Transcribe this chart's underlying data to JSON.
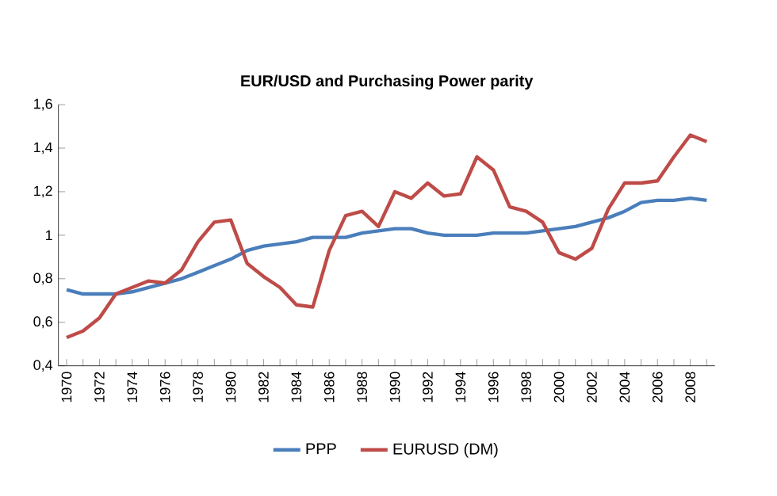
{
  "chart_data": {
    "type": "line",
    "title": "EUR/USD and Purchasing Power parity",
    "categories": [
      "1970",
      null,
      "1972",
      null,
      "1974",
      null,
      "1976",
      null,
      "1978",
      null,
      "1980",
      null,
      "1982",
      null,
      "1984",
      null,
      "1986",
      null,
      "1988",
      null,
      "1990",
      null,
      "1992",
      null,
      "1994",
      null,
      "1996",
      null,
      "1998",
      null,
      "2000",
      null,
      "2002",
      null,
      "2004",
      null,
      "2006",
      null,
      "2008",
      null
    ],
    "series": [
      {
        "name": "PPP",
        "color": "#4a7ebb",
        "values": [
          0.75,
          0.73,
          0.73,
          0.73,
          0.74,
          0.76,
          0.78,
          0.8,
          0.83,
          0.86,
          0.89,
          0.93,
          0.95,
          0.96,
          0.97,
          0.99,
          0.99,
          0.99,
          1.01,
          1.02,
          1.03,
          1.03,
          1.01,
          1.0,
          1.0,
          1.0,
          1.01,
          1.01,
          1.01,
          1.02,
          1.03,
          1.04,
          1.06,
          1.08,
          1.11,
          1.15,
          1.16,
          1.16,
          1.17,
          1.16
        ]
      },
      {
        "name": "EURUSD (DM)",
        "color": "#be4b48",
        "values": [
          0.53,
          0.56,
          0.62,
          0.73,
          0.76,
          0.79,
          0.78,
          0.84,
          0.97,
          1.06,
          1.07,
          0.87,
          0.81,
          0.76,
          0.68,
          0.67,
          0.93,
          1.09,
          1.11,
          1.04,
          1.2,
          1.17,
          1.24,
          1.18,
          1.19,
          1.36,
          1.3,
          1.13,
          1.11,
          1.06,
          0.92,
          0.89,
          0.94,
          1.12,
          1.24,
          1.24,
          1.25,
          1.36,
          1.46,
          1.43
        ]
      }
    ],
    "ylim": [
      0.4,
      1.6
    ],
    "yticks": [
      {
        "value": 0.4,
        "label": "0,4"
      },
      {
        "value": 0.6,
        "label": "0,6"
      },
      {
        "value": 0.8,
        "label": "0,8"
      },
      1,
      {
        "value": 1.2,
        "label": "1,2"
      },
      {
        "value": 1.4,
        "label": "1,4"
      },
      {
        "value": 1.6,
        "label": "1,6"
      }
    ],
    "grid": false,
    "legend": "bottom",
    "marker": "none",
    "line_style": "solid"
  }
}
